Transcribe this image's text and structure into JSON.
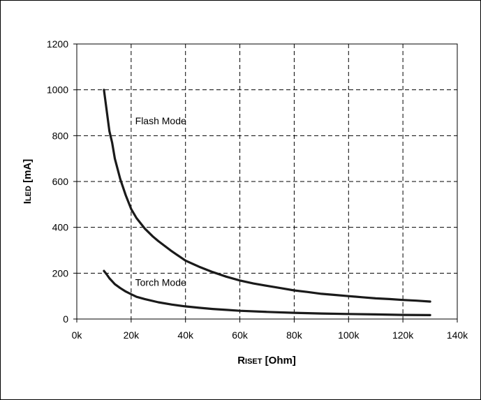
{
  "chart_data": {
    "type": "line",
    "xlabel": {
      "main": "R",
      "sub": "ISET",
      "unit": " [Ohm]"
    },
    "ylabel": {
      "main": "I",
      "sub": "LED",
      "unit": " [mA]"
    },
    "xlim": [
      0,
      140000
    ],
    "ylim": [
      0,
      1200
    ],
    "x_ticks": [
      0,
      20000,
      40000,
      60000,
      80000,
      100000,
      120000,
      140000
    ],
    "x_tick_labels": [
      "0k",
      "20k",
      "40k",
      "60k",
      "80k",
      "100k",
      "120k",
      "140k"
    ],
    "y_ticks": [
      0,
      200,
      400,
      600,
      800,
      1000,
      1200
    ],
    "y_tick_labels": [
      "0",
      "200",
      "400",
      "600",
      "800",
      "1000",
      "1200"
    ],
    "grid": true,
    "series": [
      {
        "name": "Flash Mode",
        "x": [
          10000,
          11000,
          12000,
          13000,
          14000,
          16000,
          18000,
          20000,
          22000,
          25000,
          28000,
          30000,
          35000,
          40000,
          45000,
          50000,
          55000,
          60000,
          65000,
          70000,
          75000,
          80000,
          85000,
          90000,
          95000,
          100000,
          105000,
          110000,
          115000,
          120000,
          125000,
          130000
        ],
        "y": [
          1000,
          910,
          820,
          770,
          700,
          610,
          540,
          480,
          440,
          395,
          360,
          340,
          295,
          255,
          228,
          205,
          185,
          168,
          155,
          145,
          135,
          125,
          118,
          110,
          105,
          100,
          95,
          90,
          87,
          83,
          80,
          76
        ]
      },
      {
        "name": "Torch Mode",
        "x": [
          10000,
          11000,
          12000,
          13000,
          14000,
          16000,
          18000,
          20000,
          22000,
          25000,
          30000,
          35000,
          40000,
          45000,
          50000,
          55000,
          60000,
          70000,
          80000,
          90000,
          100000,
          110000,
          120000,
          130000
        ],
        "y": [
          210,
          195,
          178,
          165,
          152,
          135,
          120,
          108,
          97,
          87,
          73,
          63,
          55,
          49,
          44,
          40,
          36,
          31,
          27,
          24,
          22,
          20,
          18,
          17
        ]
      }
    ],
    "annotations": [
      {
        "text": "Flash Mode",
        "x": 22000,
        "y": 850
      },
      {
        "text": "Torch Mode",
        "x": 22000,
        "y": 145
      }
    ]
  }
}
